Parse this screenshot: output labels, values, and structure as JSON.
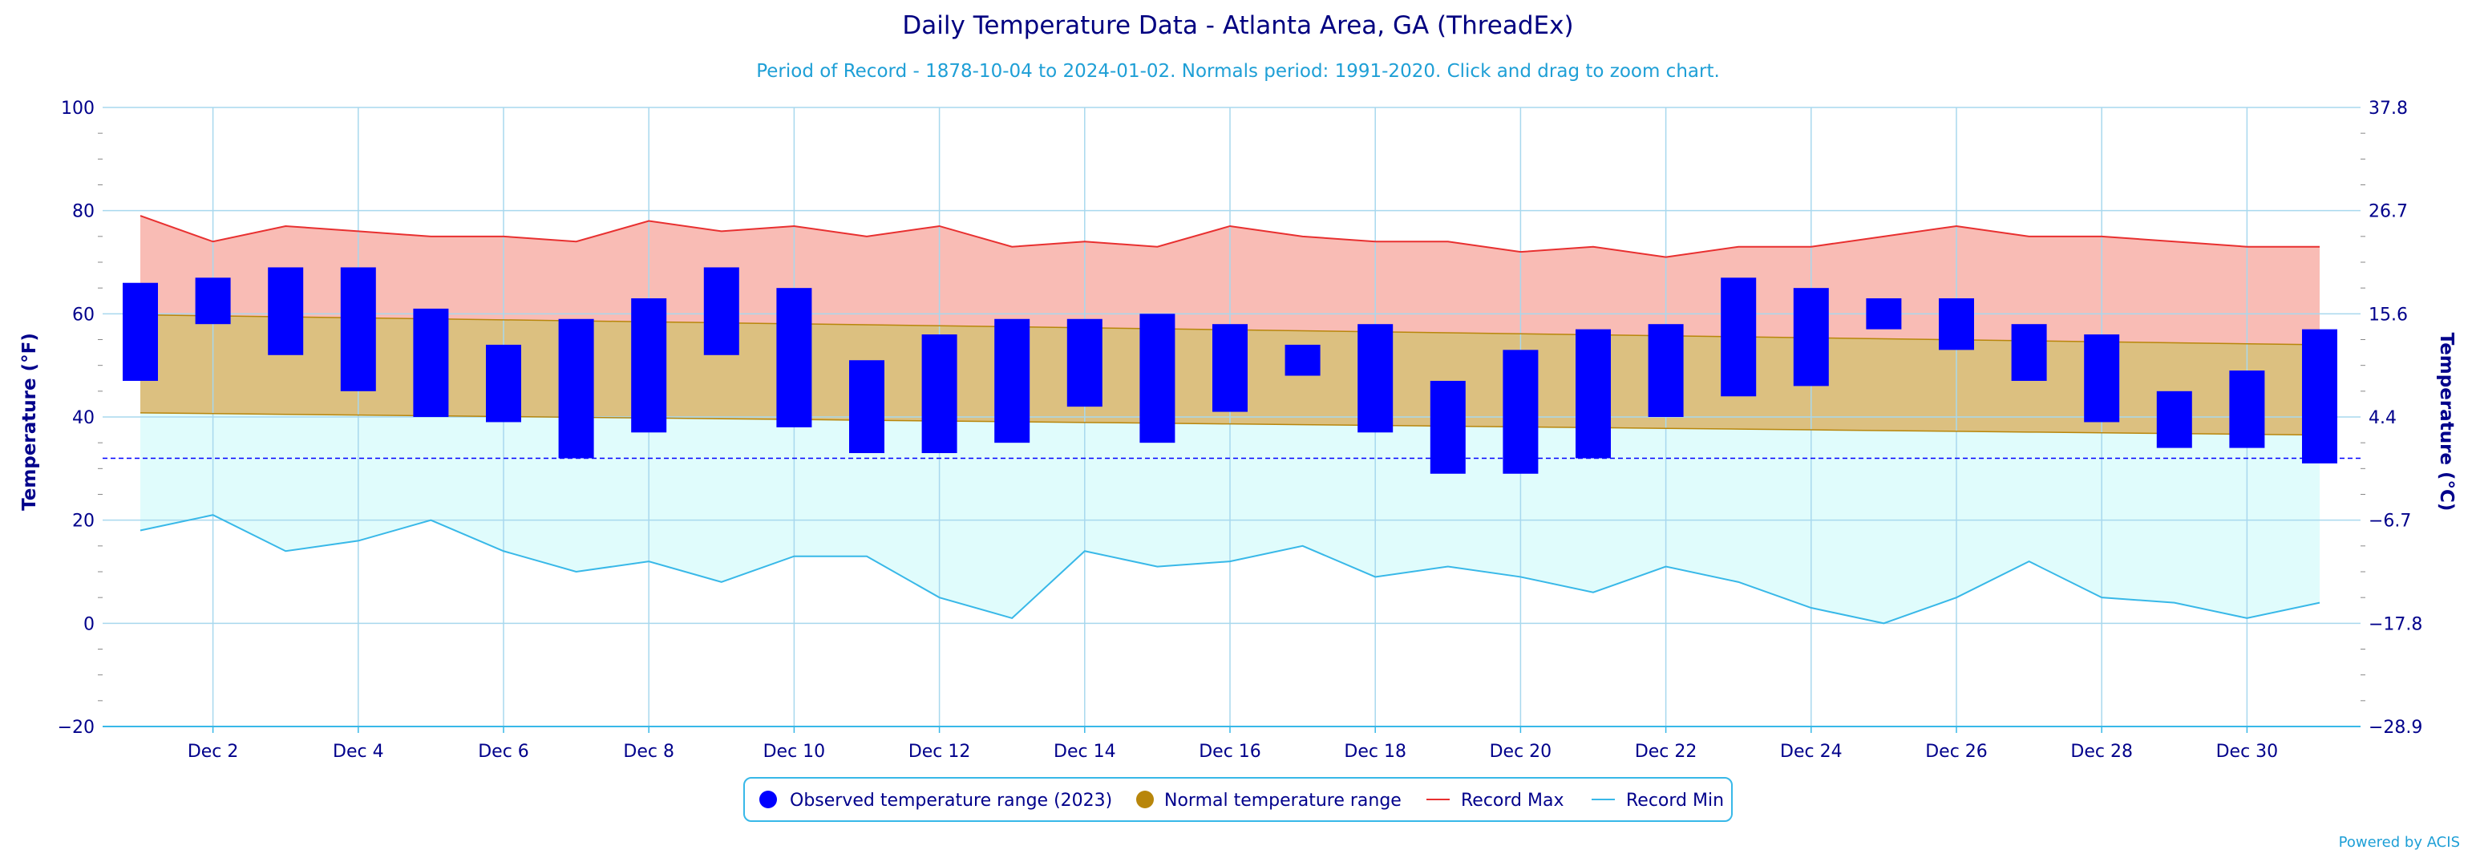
{
  "chart_data": {
    "type": "bar",
    "title": "Daily Temperature Data - Atlanta Area, GA (ThreadEx)",
    "subtitle": "Period of Record - 1878-10-04 to 2024-01-02. Normals period: 1991-2020. Click and drag to zoom chart.",
    "ylabel": "Temperature (°F)",
    "ylabel_right": "Temperature (°C)",
    "ylim": [
      -20,
      100
    ],
    "y_ticks": [
      -20,
      0,
      20,
      40,
      60,
      80,
      100
    ],
    "y_ticks_right": [
      "-28.9",
      "-17.8",
      "-6.7",
      "4.4",
      "15.6",
      "26.7",
      "37.8"
    ],
    "freezing_line": 32,
    "x_days": [
      1,
      2,
      3,
      4,
      5,
      6,
      7,
      8,
      9,
      10,
      11,
      12,
      13,
      14,
      15,
      16,
      17,
      18,
      19,
      20,
      21,
      22,
      23,
      24,
      25,
      26,
      27,
      28,
      29,
      30,
      31
    ],
    "x_tick_labels": [
      "Dec 2",
      "Dec 4",
      "Dec 6",
      "Dec 8",
      "Dec 10",
      "Dec 12",
      "Dec 14",
      "Dec 16",
      "Dec 18",
      "Dec 20",
      "Dec 22",
      "Dec 24",
      "Dec 26",
      "Dec 28",
      "Dec 30"
    ],
    "x_tick_days": [
      2,
      4,
      6,
      8,
      10,
      12,
      14,
      16,
      18,
      20,
      22,
      24,
      26,
      28,
      30
    ],
    "observed_low": [
      47,
      58,
      52,
      45,
      40,
      39,
      32,
      37,
      52,
      38,
      33,
      33,
      35,
      42,
      35,
      41,
      48,
      37,
      29,
      29,
      32,
      40,
      44,
      46,
      57,
      53,
      47,
      39,
      34,
      34,
      31
    ],
    "observed_high": [
      66,
      67,
      69,
      69,
      61,
      54,
      59,
      63,
      69,
      65,
      51,
      56,
      59,
      59,
      60,
      58,
      54,
      58,
      47,
      53,
      57,
      58,
      67,
      65,
      63,
      63,
      58,
      56,
      45,
      49,
      57
    ],
    "normal_low_start": 40.8,
    "normal_low_end": 36.5,
    "normal_high_start": 59.8,
    "normal_high_end": 54.0,
    "record_max": [
      79,
      74,
      77,
      76,
      75,
      75,
      74,
      78,
      76,
      77,
      75,
      77,
      73,
      74,
      73,
      77,
      75,
      74,
      74,
      72,
      73,
      71,
      73,
      73,
      75,
      77,
      75,
      75,
      74,
      73,
      73
    ],
    "record_min": [
      18,
      21,
      14,
      16,
      20,
      14,
      10,
      12,
      8,
      13,
      13,
      5,
      1,
      14,
      11,
      12,
      15,
      9,
      11,
      9,
      6,
      11,
      8,
      3,
      0,
      5,
      12,
      5,
      4,
      1,
      4
    ],
    "legend": {
      "observed": "Observed temperature range (2023)",
      "normal": "Normal temperature range",
      "record_max": "Record Max",
      "record_min": "Record Min"
    },
    "legend_placement": "bottom-center",
    "grid": true,
    "colors": {
      "title": "#000080",
      "subtitle": "#1e9fd6",
      "axis_text": "#00008b",
      "grid": "#a8d8ee",
      "observed": "#0000ff",
      "normal_fill": "#dcc080",
      "normal_line": "#b8860b",
      "normal_legend": "#b8860b",
      "record_max_line": "#e83030",
      "record_max_fill": "#f9bcb5",
      "record_min_line": "#38b8e8",
      "record_min_fill": "#e0fcfc",
      "freezing": "#0000ff"
    }
  },
  "credit": "Powered by ACIS"
}
